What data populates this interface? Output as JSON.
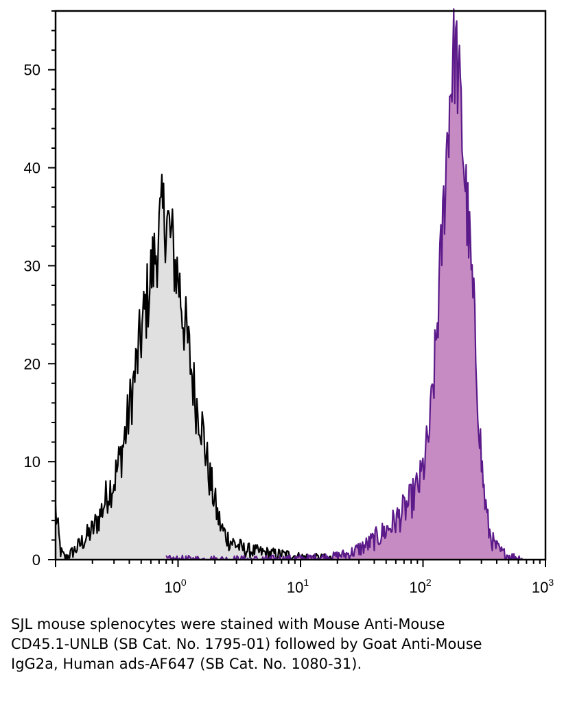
{
  "chart_data": {
    "type": "area",
    "x_scale": "log",
    "xlim": [
      0.1,
      1000
    ],
    "ylim": [
      0,
      56
    ],
    "grid": false,
    "y_ticks": [
      "0",
      "10",
      "20",
      "30",
      "40",
      "50"
    ],
    "x_tick_values": [
      1,
      10,
      100,
      1000
    ],
    "x_ticks": [
      {
        "base": "10",
        "exp": "0"
      },
      {
        "base": "10",
        "exp": "1"
      },
      {
        "base": "10",
        "exp": "2"
      },
      {
        "base": "10",
        "exp": "3"
      }
    ],
    "series": [
      {
        "fill": "#e0e0e0",
        "stroke": "#000000",
        "points": [
          [
            0.1,
            5
          ],
          [
            0.11,
            0.8
          ],
          [
            0.12,
            0.2
          ],
          [
            0.13,
            0.5
          ],
          [
            0.15,
            1.2
          ],
          [
            0.17,
            2
          ],
          [
            0.2,
            3
          ],
          [
            0.23,
            4.5
          ],
          [
            0.27,
            7
          ],
          [
            0.3,
            8
          ],
          [
            0.34,
            10.5
          ],
          [
            0.38,
            13.5
          ],
          [
            0.42,
            17
          ],
          [
            0.46,
            20
          ],
          [
            0.5,
            23
          ],
          [
            0.55,
            26
          ],
          [
            0.6,
            29
          ],
          [
            0.65,
            31
          ],
          [
            0.7,
            33.5
          ],
          [
            0.75,
            35
          ],
          [
            0.8,
            35
          ],
          [
            0.85,
            33.5
          ],
          [
            0.9,
            32
          ],
          [
            0.95,
            30
          ],
          [
            1.0,
            29
          ],
          [
            1.05,
            27
          ],
          [
            1.1,
            25
          ],
          [
            1.2,
            22
          ],
          [
            1.3,
            19
          ],
          [
            1.4,
            16
          ],
          [
            1.5,
            15
          ],
          [
            1.6,
            13
          ],
          [
            1.7,
            10.5
          ],
          [
            1.8,
            8.5
          ],
          [
            1.95,
            6.5
          ],
          [
            2.1,
            4.5
          ],
          [
            2.3,
            3
          ],
          [
            2.6,
            2
          ],
          [
            3.0,
            1.5
          ],
          [
            3.5,
            1
          ],
          [
            4.5,
            0.8
          ],
          [
            6,
            0.6
          ],
          [
            8,
            0.5
          ],
          [
            10,
            0.3
          ],
          [
            13,
            0.2
          ],
          [
            17,
            0.15
          ],
          [
            22,
            0.1
          ]
        ]
      },
      {
        "fill": "#c58bc2",
        "stroke": "#5b1a8a",
        "points": [
          [
            0.8,
            0
          ],
          [
            1.2,
            0
          ],
          [
            2,
            0
          ],
          [
            5,
            0
          ],
          [
            10,
            0.1
          ],
          [
            18,
            0.3
          ],
          [
            25,
            0.6
          ],
          [
            35,
            1.5
          ],
          [
            45,
            2.5
          ],
          [
            55,
            3.5
          ],
          [
            65,
            4.5
          ],
          [
            80,
            6
          ],
          [
            95,
            8
          ],
          [
            105,
            10.5
          ],
          [
            115,
            14
          ],
          [
            125,
            20
          ],
          [
            135,
            27
          ],
          [
            145,
            34
          ],
          [
            155,
            41
          ],
          [
            165,
            47
          ],
          [
            175,
            51
          ],
          [
            185,
            52
          ],
          [
            195,
            49
          ],
          [
            205,
            45
          ],
          [
            215,
            41
          ],
          [
            225,
            37
          ],
          [
            240,
            32
          ],
          [
            260,
            25
          ],
          [
            280,
            17
          ],
          [
            300,
            10
          ],
          [
            320,
            6
          ],
          [
            345,
            3
          ],
          [
            380,
            1.5
          ],
          [
            430,
            0.8
          ],
          [
            500,
            0.4
          ],
          [
            600,
            0.2
          ],
          [
            650,
            0.1
          ]
        ]
      }
    ]
  },
  "caption": "SJL mouse splenocytes were stained with Mouse Anti-Mouse CD45.1-UNLB (SB Cat. No. 1795-01) followed by Goat Anti-Mouse IgG2a, Human ads-AF647 (SB Cat. No. 1080-31)."
}
